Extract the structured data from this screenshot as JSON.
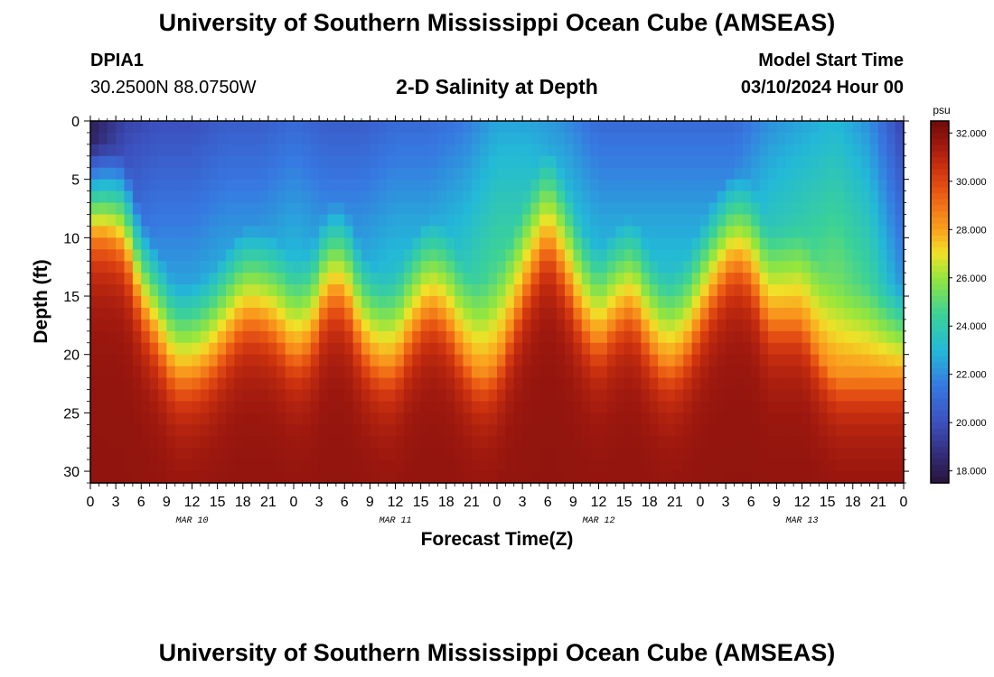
{
  "header": {
    "title": "University of Southern Mississippi Ocean Cube (AMSEAS)",
    "station_id": "DPIA1",
    "coordinates": "30.2500N  88.0750W",
    "model_start_label": "Model Start Time",
    "model_start_value": "03/10/2024 Hour 00"
  },
  "footer": {
    "title": "University of Southern Mississippi Ocean Cube (AMSEAS)"
  },
  "chart_data": {
    "type": "heatmap",
    "title": "2-D Salinity at Depth",
    "xlabel": "Forecast Time(Z)",
    "ylabel": "Depth (ft)",
    "x_hours_range": [
      0,
      96
    ],
    "x_ticks": [
      "0",
      "3",
      "6",
      "9",
      "12",
      "15",
      "18",
      "21",
      "0",
      "3",
      "6",
      "9",
      "12",
      "15",
      "18",
      "21",
      "0",
      "3",
      "6",
      "9",
      "12",
      "15",
      "18",
      "21",
      "0",
      "3",
      "6",
      "9",
      "12",
      "15",
      "18",
      "21",
      "0"
    ],
    "date_labels": [
      {
        "label": "MAR 10",
        "hour": 12
      },
      {
        "label": "MAR 11",
        "hour": 36
      },
      {
        "label": "MAR 12",
        "hour": 60
      },
      {
        "label": "MAR 13",
        "hour": 84
      }
    ],
    "y_ticks": [
      0,
      5,
      10,
      15,
      20,
      25,
      30
    ],
    "ylim": [
      0,
      31
    ],
    "colorbar": {
      "unit": "psu",
      "range": [
        17.5,
        32.5
      ],
      "tick_values": [
        18,
        20,
        22,
        24,
        26,
        28,
        30,
        32
      ],
      "tick_labels": [
        "18.000",
        "20.000",
        "22.000",
        "24.000",
        "26.000",
        "28.000",
        "30.000",
        "32.000"
      ]
    },
    "halocline_depth_ft": {
      "hours": [
        0,
        2,
        4,
        6,
        8,
        10,
        12,
        14,
        16,
        18,
        20,
        22,
        24,
        26,
        28,
        30,
        32,
        34,
        36,
        38,
        40,
        42,
        44,
        46,
        48,
        50,
        52,
        54,
        56,
        58,
        60,
        62,
        64,
        66,
        68,
        70,
        72,
        74,
        76,
        78,
        80,
        82,
        84,
        86,
        88,
        90,
        92,
        94,
        96
      ],
      "values": [
        10,
        10,
        11,
        16,
        19,
        22,
        22,
        21,
        19,
        17,
        17,
        18,
        20,
        19,
        15,
        15,
        19,
        21,
        21,
        18,
        16,
        17,
        20,
        22,
        21,
        17,
        13,
        10,
        13,
        17,
        19,
        17,
        16,
        19,
        21,
        20,
        17,
        14,
        12,
        13,
        17,
        17,
        17,
        20,
        22,
        22,
        22,
        22,
        22
      ]
    },
    "surface_salinity_psu": {
      "hours": [
        0,
        4,
        8,
        12,
        16,
        20,
        24,
        28,
        32,
        36,
        40,
        44,
        48,
        52,
        56,
        60,
        64,
        68,
        72,
        76,
        80,
        84,
        88,
        92,
        96
      ],
      "values": [
        18,
        19.5,
        20,
        20,
        20.5,
        20.5,
        21,
        20.5,
        20.5,
        21,
        21,
        21.5,
        22.5,
        22.5,
        22,
        21,
        21,
        21,
        21,
        21,
        22,
        22.5,
        23,
        22,
        19.5
      ]
    }
  }
}
